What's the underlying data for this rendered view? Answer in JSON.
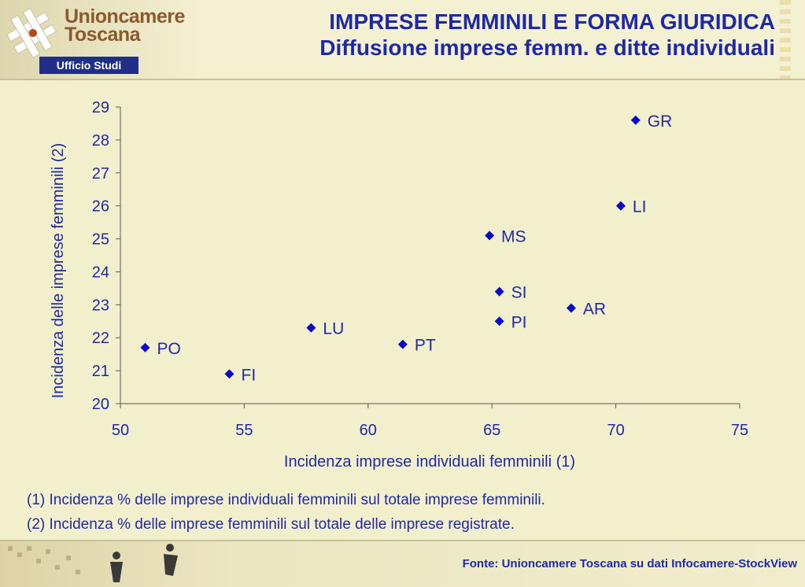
{
  "header": {
    "logo_line1": "Unioncamere",
    "logo_line2": "Toscana",
    "ufficio": "Ufficio Studi",
    "title": "IMPRESE FEMMINILI E FORMA GIURIDICA",
    "subtitle": "Diffusione imprese femm. e ditte individuali"
  },
  "chart_data": {
    "type": "scatter",
    "xlabel": "Incidenza imprese individuali femminili (1)",
    "ylabel": "Incidenza delle imprese femminili (2)",
    "xlim": [
      50,
      75
    ],
    "ylim": [
      20,
      29
    ],
    "xticks": [
      50,
      55,
      60,
      65,
      70,
      75
    ],
    "yticks": [
      20,
      21,
      22,
      23,
      24,
      25,
      26,
      27,
      28,
      29
    ],
    "grid": false,
    "marker_color": "#0a0ac8",
    "points": [
      {
        "label": "GR",
        "x": 70.8,
        "y": 28.6
      },
      {
        "label": "LI",
        "x": 70.2,
        "y": 26.0
      },
      {
        "label": "MS",
        "x": 64.9,
        "y": 25.1
      },
      {
        "label": "SI",
        "x": 65.3,
        "y": 23.4
      },
      {
        "label": "AR",
        "x": 68.2,
        "y": 22.9
      },
      {
        "label": "PI",
        "x": 65.3,
        "y": 22.5
      },
      {
        "label": "LU",
        "x": 57.7,
        "y": 22.3
      },
      {
        "label": "PT",
        "x": 61.4,
        "y": 21.8
      },
      {
        "label": "PO",
        "x": 51.0,
        "y": 21.7
      },
      {
        "label": "FI",
        "x": 54.4,
        "y": 20.9
      }
    ]
  },
  "footnotes": {
    "note1": "(1) Incidenza % delle imprese individuali femminili sul totale imprese femminili.",
    "note2": "(2) Incidenza % delle imprese femminili sul totale delle imprese registrate."
  },
  "footer": {
    "fonte": "Fonte: Unioncamere Toscana su dati Infocamere-StockView"
  }
}
